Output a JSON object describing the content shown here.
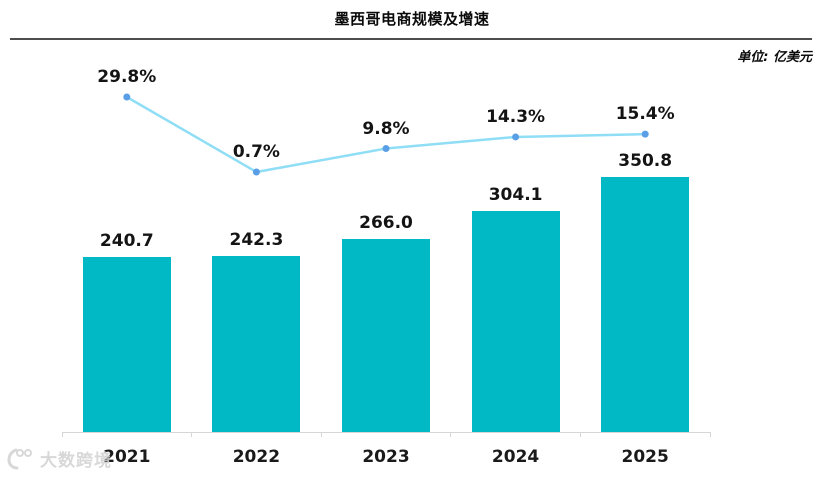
{
  "header": {
    "title": "墨西哥电商规模及增速",
    "unit_label": "单位: 亿美元"
  },
  "watermark": {
    "brand": "大数跨境"
  },
  "colors": {
    "bar": "#00b9c4",
    "line": "#8fdef6",
    "marker": "#5a9fe6",
    "divider": "#4d4d4d",
    "axis": "#d6d6d6",
    "text": "#141414"
  },
  "chart_data": {
    "type": "bar",
    "overlay": "line",
    "title": "墨西哥电商规模及增速",
    "unit": "亿美元",
    "categories": [
      "2021",
      "2022",
      "2023",
      "2024",
      "2025"
    ],
    "series": [
      {
        "name": "bar-values",
        "type": "bar",
        "values": [
          240.7,
          242.3,
          266.0,
          304.1,
          350.8
        ],
        "labels": [
          "240.7",
          "242.3",
          "266.0",
          "304.1",
          "350.8"
        ]
      },
      {
        "name": "growth-rate-line",
        "type": "line",
        "values": [
          29.8,
          0.7,
          9.8,
          14.3,
          15.4
        ],
        "labels": [
          "29.8%",
          "0.7%",
          "9.8%",
          "14.3%",
          "15.4%"
        ]
      }
    ],
    "legend": "none",
    "grid": false,
    "y_axis_visible": false,
    "x_axis_visible": true
  }
}
